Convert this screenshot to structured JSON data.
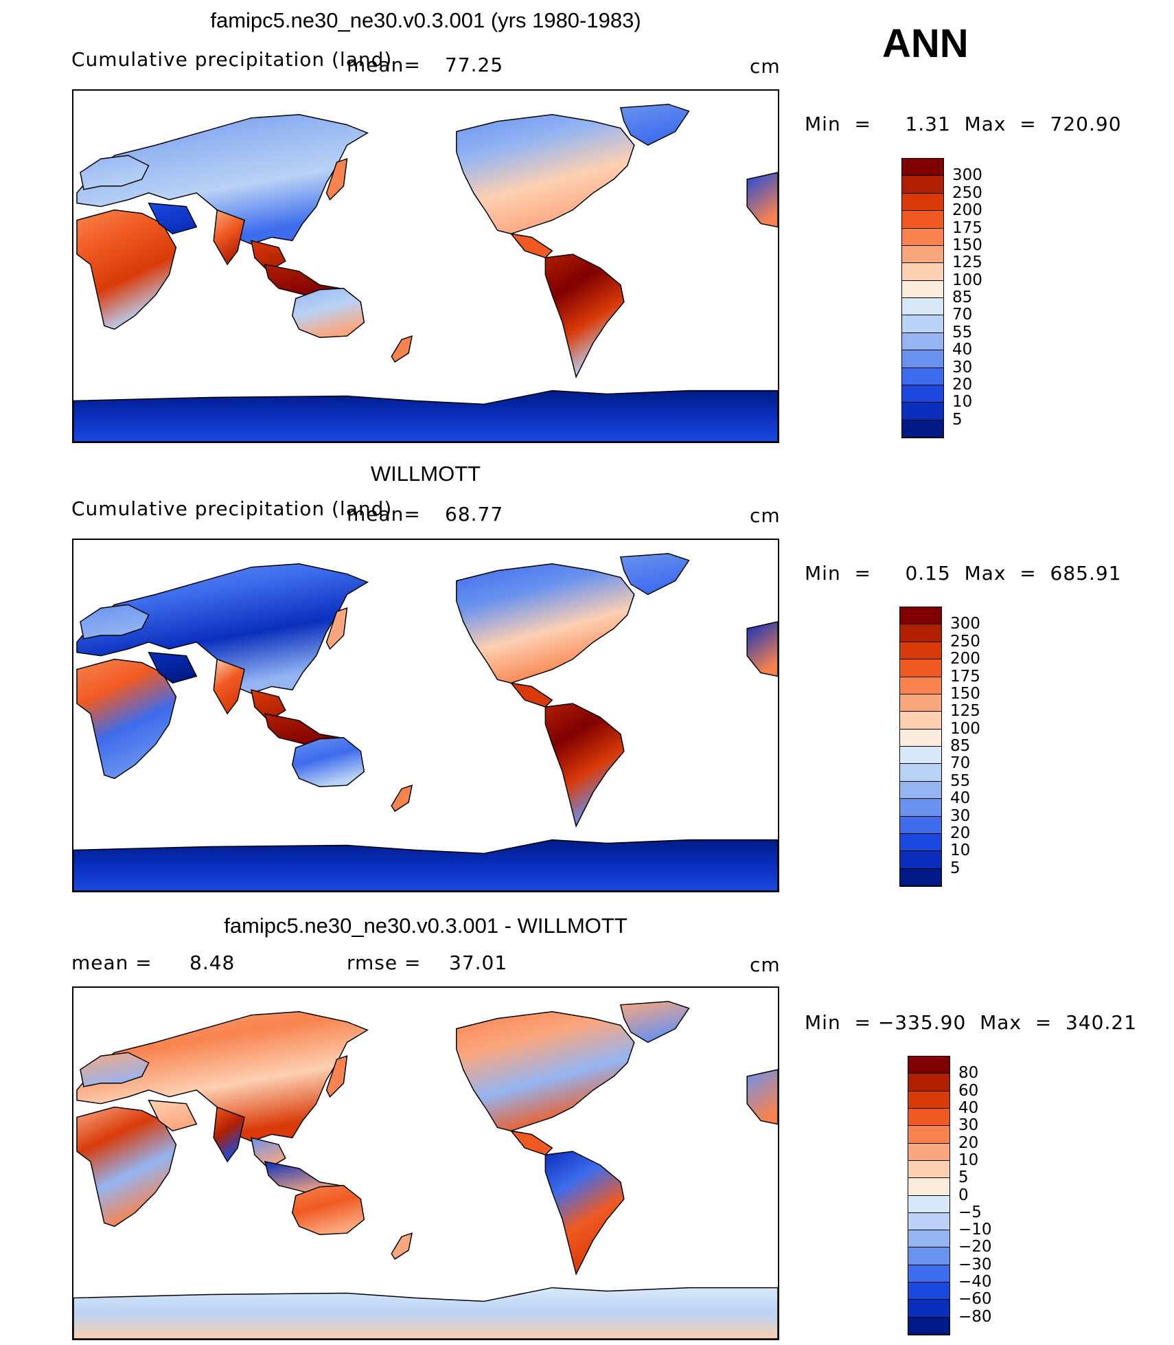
{
  "season": "ANN",
  "panels": [
    {
      "title": "famipc5.ne30_ne30.v0.3.001 (yrs 1980-1983)",
      "left_label": "Cumulative precipitation (land)",
      "mid_label": "mean=",
      "mid_value": "77.25",
      "units": "cm",
      "minmax": "Min  =     1.31  Max  =  720.90"
    },
    {
      "title": "WILLMOTT",
      "left_label": "Cumulative precipitation (land)",
      "mid_label": "mean=",
      "mid_value": "68.77",
      "units": "cm",
      "minmax": "Min  =     0.15  Max  =  685.91"
    },
    {
      "title": "famipc5.ne30_ne30.v0.3.001 - WILLMOTT",
      "left_label": "mean  =",
      "left_value": "8.48",
      "mid_label": "rmse  =",
      "mid_value": "37.01",
      "units": "cm",
      "minmax": "Min  = −335.90  Max  =  340.21"
    }
  ],
  "chart_data": [
    {
      "type": "heatmap",
      "title": "famipc5.ne30_ne30.v0.3.001 (yrs 1980-1983)",
      "variable": "Cumulative precipitation (land)",
      "units": "cm",
      "mean": 77.25,
      "min": 1.31,
      "max": 720.9,
      "colorbar_levels": [
        "300",
        "250",
        "200",
        "175",
        "150",
        "125",
        "100",
        "85",
        "70",
        "55",
        "40",
        "30",
        "20",
        "10",
        "5"
      ],
      "colorbar_colors": [
        "#7f0000",
        "#b01f00",
        "#d93a08",
        "#f05a22",
        "#f8834e",
        "#fba77e",
        "#fdd0b2",
        "#fbecdc",
        "#d7e8f8",
        "#b9d2f5",
        "#94b5f2",
        "#6992ef",
        "#3d6ced",
        "#1b49e0",
        "#0a2fbd",
        "#001a87"
      ]
    },
    {
      "type": "heatmap",
      "title": "WILLMOTT",
      "variable": "Cumulative precipitation (land)",
      "units": "cm",
      "mean": 68.77,
      "min": 0.15,
      "max": 685.91,
      "colorbar_levels": [
        "300",
        "250",
        "200",
        "175",
        "150",
        "125",
        "100",
        "85",
        "70",
        "55",
        "40",
        "30",
        "20",
        "10",
        "5"
      ],
      "colorbar_colors": [
        "#7f0000",
        "#b01f00",
        "#d93a08",
        "#f05a22",
        "#f8834e",
        "#fba77e",
        "#fdd0b2",
        "#fbecdc",
        "#d7e8f8",
        "#b9d2f5",
        "#94b5f2",
        "#6992ef",
        "#3d6ced",
        "#1b49e0",
        "#0a2fbd",
        "#001a87"
      ]
    },
    {
      "type": "heatmap",
      "title": "famipc5.ne30_ne30.v0.3.001 - WILLMOTT",
      "units": "cm",
      "mean": 8.48,
      "rmse": 37.01,
      "min": -335.9,
      "max": 340.21,
      "colorbar_levels": [
        "80",
        "60",
        "40",
        "30",
        "20",
        "10",
        "5",
        "0",
        "−5",
        "−10",
        "−20",
        "−30",
        "−40",
        "−60",
        "−80"
      ],
      "colorbar_colors": [
        "#7f0000",
        "#b01f00",
        "#d93a08",
        "#f05a22",
        "#f8834e",
        "#fba77e",
        "#fdd0b2",
        "#fbecdc",
        "#d7e8f8",
        "#b9d2f5",
        "#94b5f2",
        "#6992ef",
        "#3d6ced",
        "#1b49e0",
        "#0a2fbd",
        "#001a87"
      ]
    }
  ]
}
